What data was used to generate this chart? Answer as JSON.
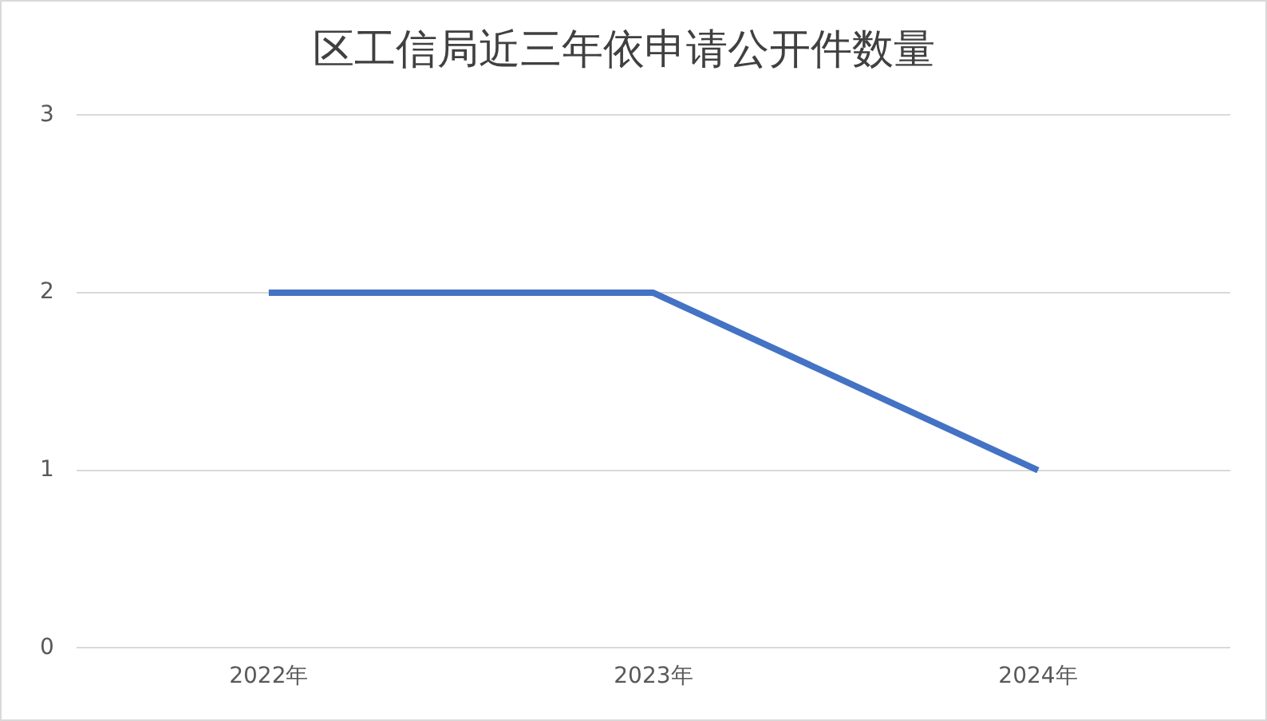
{
  "chart_data": {
    "type": "line",
    "title": "区工信局近三年依申请公开件数量",
    "categories": [
      "2022年",
      "2023年",
      "2024年"
    ],
    "series": [
      {
        "color": "#4472c4",
        "values": [
          2,
          2,
          1
        ]
      }
    ],
    "ylim": [
      0,
      3
    ],
    "yticks": [
      0,
      1,
      2,
      3
    ],
    "grid": "y",
    "legend": false,
    "marker": "none"
  }
}
